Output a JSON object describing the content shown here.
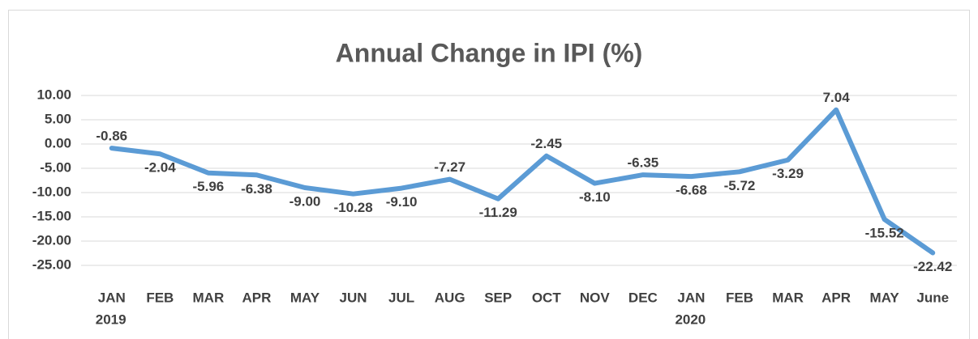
{
  "chart_data": {
    "type": "line",
    "title": "Annual Change in IPI (%)",
    "categories": [
      "JAN",
      "FEB",
      "MAR",
      "APR",
      "MAY",
      "JUN",
      "JUL",
      "AUG",
      "SEP",
      "OCT",
      "NOV",
      "DEC",
      "JAN",
      "FEB",
      "MAR",
      "APR",
      "MAY",
      "June"
    ],
    "year_labels": [
      "2019",
      null,
      null,
      null,
      null,
      null,
      null,
      null,
      null,
      null,
      null,
      null,
      "2020",
      null,
      null,
      null,
      null,
      null
    ],
    "series": [
      {
        "name": "Annual Change in IPI",
        "color": "#5b9bd5",
        "values": [
          -0.86,
          -2.04,
          -5.96,
          -6.38,
          -9.0,
          -10.28,
          -9.1,
          -7.27,
          -11.29,
          -2.45,
          -8.1,
          -6.35,
          -6.68,
          -5.72,
          -3.29,
          7.04,
          -15.52,
          -22.42
        ],
        "value_labels": [
          "-0.86",
          "-2.04",
          "-5.96",
          "-6.38",
          "-9.00",
          "-10.28",
          "-9.10",
          "-7.27",
          "-11.29",
          "-2.45",
          "-8.10",
          "-6.35",
          "-6.68",
          "-5.72",
          "-3.29",
          "7.04",
          "-15.52",
          "-22.42"
        ]
      }
    ],
    "ylim": [
      -25,
      10
    ],
    "yticks": [
      {
        "value": -25,
        "label": "-25.00"
      },
      {
        "value": -20,
        "label": "-20.00"
      },
      {
        "value": -15,
        "label": "-15.00"
      },
      {
        "value": -10,
        "label": "-10.00"
      },
      {
        "value": -5,
        "label": "-5.00"
      },
      {
        "value": 0,
        "label": "0.00"
      },
      {
        "value": 5,
        "label": "5.00"
      },
      {
        "value": 10,
        "label": "10.00"
      }
    ],
    "grid": true
  }
}
